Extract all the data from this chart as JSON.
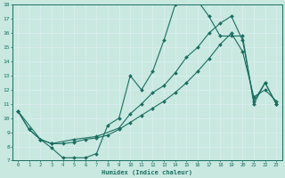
{
  "xlabel": "Humidex (Indice chaleur)",
  "xlim": [
    -0.5,
    23.5
  ],
  "ylim": [
    7,
    18
  ],
  "xticks": [
    0,
    1,
    2,
    3,
    4,
    5,
    6,
    7,
    8,
    9,
    10,
    11,
    12,
    13,
    14,
    15,
    16,
    17,
    18,
    19,
    20,
    21,
    22,
    23
  ],
  "yticks": [
    7,
    8,
    9,
    10,
    11,
    12,
    13,
    14,
    15,
    16,
    17,
    18
  ],
  "bg_color": "#c8e8e0",
  "line_color": "#1a6e60",
  "grid_color": "#d8eded",
  "line1_x": [
    0,
    1,
    2,
    3,
    4,
    5,
    6,
    7,
    8,
    9,
    10,
    11,
    12,
    13,
    14,
    15,
    16,
    17,
    18,
    19,
    20,
    21,
    22,
    23
  ],
  "line1_y": [
    10.5,
    9.2,
    8.5,
    7.9,
    7.2,
    7.2,
    7.2,
    7.5,
    9.5,
    10.0,
    13.0,
    12.0,
    13.3,
    15.5,
    18.0,
    18.2,
    18.3,
    17.2,
    15.8,
    15.8,
    15.8,
    11.0,
    12.5,
    11.0
  ],
  "line2_x": [
    0,
    2,
    3,
    5,
    7,
    9,
    10,
    11,
    12,
    13,
    14,
    15,
    16,
    17,
    18,
    19,
    20,
    21,
    22,
    23
  ],
  "line2_y": [
    10.5,
    8.5,
    8.2,
    8.5,
    8.7,
    9.3,
    10.3,
    11.0,
    11.8,
    12.3,
    13.2,
    14.3,
    15.0,
    16.0,
    16.7,
    17.2,
    15.5,
    11.2,
    12.5,
    11.0
  ],
  "line3_x": [
    0,
    1,
    2,
    3,
    4,
    5,
    6,
    7,
    8,
    9,
    10,
    11,
    12,
    13,
    14,
    15,
    16,
    17,
    18,
    19,
    20,
    21,
    22,
    23
  ],
  "line3_y": [
    10.5,
    9.2,
    8.5,
    8.2,
    8.2,
    8.3,
    8.5,
    8.6,
    8.8,
    9.2,
    9.7,
    10.2,
    10.7,
    11.2,
    11.8,
    12.5,
    13.3,
    14.2,
    15.2,
    16.0,
    14.7,
    11.5,
    12.0,
    11.2
  ]
}
